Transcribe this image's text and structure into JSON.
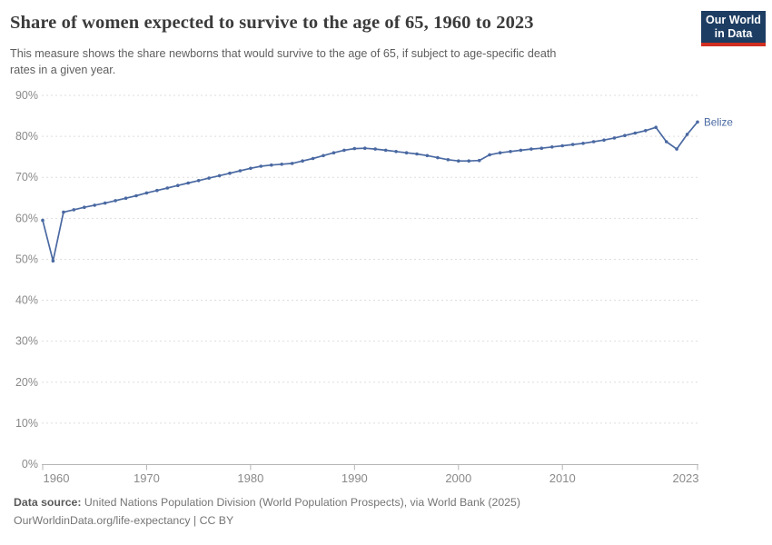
{
  "header": {
    "title": "Share of women expected to survive to the age of 65, 1960 to 2023",
    "subtitle_line1": "This measure shows the share newborns that would survive to the age of 65, if subject to age-specific death",
    "subtitle_line2": "rates in a given year.",
    "logo": {
      "line1": "Our World",
      "line2": "in Data",
      "bg_color": "#1d3d63",
      "accent_color": "#d02f21"
    }
  },
  "chart_data": {
    "type": "line",
    "title": "Share of women expected to survive to the age of 65, 1960 to 2023",
    "xlabel": "",
    "ylabel": "",
    "xlim": [
      1960,
      2023
    ],
    "ylim": [
      0,
      90
    ],
    "grid": "horizontal-dashed",
    "legend_position": "end-of-line-label",
    "x_ticks": [
      1960,
      1970,
      1980,
      1990,
      2000,
      2010,
      2023
    ],
    "x_tick_labels": [
      "1960",
      "1970",
      "1980",
      "1990",
      "2000",
      "2010",
      "2023"
    ],
    "y_ticks": [
      0,
      10,
      20,
      30,
      40,
      50,
      60,
      70,
      80,
      90
    ],
    "y_tick_labels": [
      "0%",
      "10%",
      "20%",
      "30%",
      "40%",
      "50%",
      "60%",
      "70%",
      "80%",
      "90%"
    ],
    "series": [
      {
        "name": "Belize",
        "color": "#4a69a2",
        "years": [
          1960,
          1961,
          1962,
          1963,
          1964,
          1965,
          1966,
          1967,
          1968,
          1969,
          1970,
          1971,
          1972,
          1973,
          1974,
          1975,
          1976,
          1977,
          1978,
          1979,
          1980,
          1981,
          1982,
          1983,
          1984,
          1985,
          1986,
          1987,
          1988,
          1989,
          1990,
          1991,
          1992,
          1993,
          1994,
          1995,
          1996,
          1997,
          1998,
          1999,
          2000,
          2001,
          2002,
          2003,
          2004,
          2005,
          2006,
          2007,
          2008,
          2009,
          2010,
          2011,
          2012,
          2013,
          2014,
          2015,
          2016,
          2017,
          2018,
          2019,
          2020,
          2021,
          2022,
          2023
        ],
        "values": [
          59.5,
          49.6,
          61.5,
          62.1,
          62.7,
          63.2,
          63.7,
          64.3,
          64.9,
          65.5,
          66.2,
          66.8,
          67.4,
          68.0,
          68.6,
          69.2,
          69.8,
          70.4,
          71.0,
          71.6,
          72.2,
          72.7,
          73.0,
          73.2,
          73.4,
          74.0,
          74.6,
          75.3,
          76.0,
          76.6,
          77.0,
          77.1,
          76.9,
          76.6,
          76.3,
          76.0,
          75.7,
          75.3,
          74.8,
          74.3,
          74.0,
          74.0,
          74.1,
          75.5,
          76.0,
          76.3,
          76.6,
          76.9,
          77.1,
          77.4,
          77.7,
          78.0,
          78.3,
          78.7,
          79.1,
          79.6,
          80.2,
          80.8,
          81.4,
          82.2,
          78.7,
          76.9,
          80.5,
          83.5
        ]
      }
    ],
    "colors": {
      "gridline": "#dddddd",
      "axis": "#b5b5b5",
      "tick_label": "#8a8a8a"
    }
  },
  "footer": {
    "source_label": "Data source:",
    "source_text": " United Nations Population Division (World Population Prospects), via World Bank (2025)",
    "link_text": "OurWorldinData.org/life-expectancy",
    "separator": " | ",
    "license_text": "CC BY"
  }
}
